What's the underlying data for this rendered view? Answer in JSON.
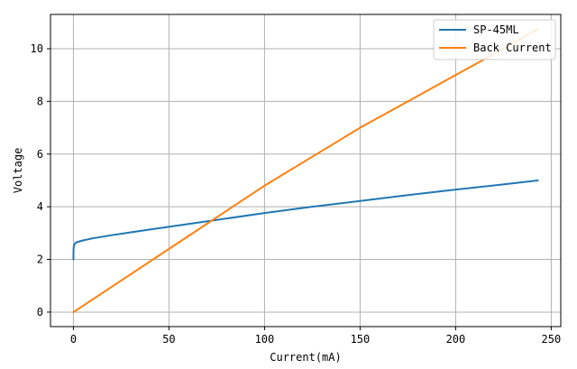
{
  "chart_data": {
    "type": "line",
    "xlabel": "Current(mA)",
    "ylabel": "Voltage",
    "xlim": [
      -12,
      255
    ],
    "ylim": [
      -0.55,
      11.3
    ],
    "xticks": [
      0,
      50,
      100,
      150,
      200,
      250
    ],
    "yticks": [
      0,
      2,
      4,
      6,
      8,
      10
    ],
    "grid": true,
    "legend_position": "top-right",
    "series": [
      {
        "name": "SP-45ML",
        "color": "#1f77b4",
        "x": [
          0,
          0.05,
          0.2,
          0.5,
          1,
          2,
          5,
          10,
          20,
          30,
          50,
          75,
          100,
          125,
          150,
          175,
          200,
          225,
          243
        ],
        "y": [
          2.0,
          2.35,
          2.5,
          2.57,
          2.62,
          2.66,
          2.72,
          2.8,
          2.92,
          3.03,
          3.24,
          3.5,
          3.76,
          4.0,
          4.22,
          4.44,
          4.65,
          4.85,
          5.0
        ]
      },
      {
        "name": "Back Current",
        "color": "#ff7f0e",
        "x": [
          0,
          25,
          50,
          75,
          100,
          125,
          150,
          175,
          200,
          225,
          243
        ],
        "y": [
          0.0,
          1.2,
          2.4,
          3.6,
          4.8,
          5.9,
          7.0,
          8.0,
          9.0,
          10.0,
          10.75
        ]
      }
    ]
  }
}
